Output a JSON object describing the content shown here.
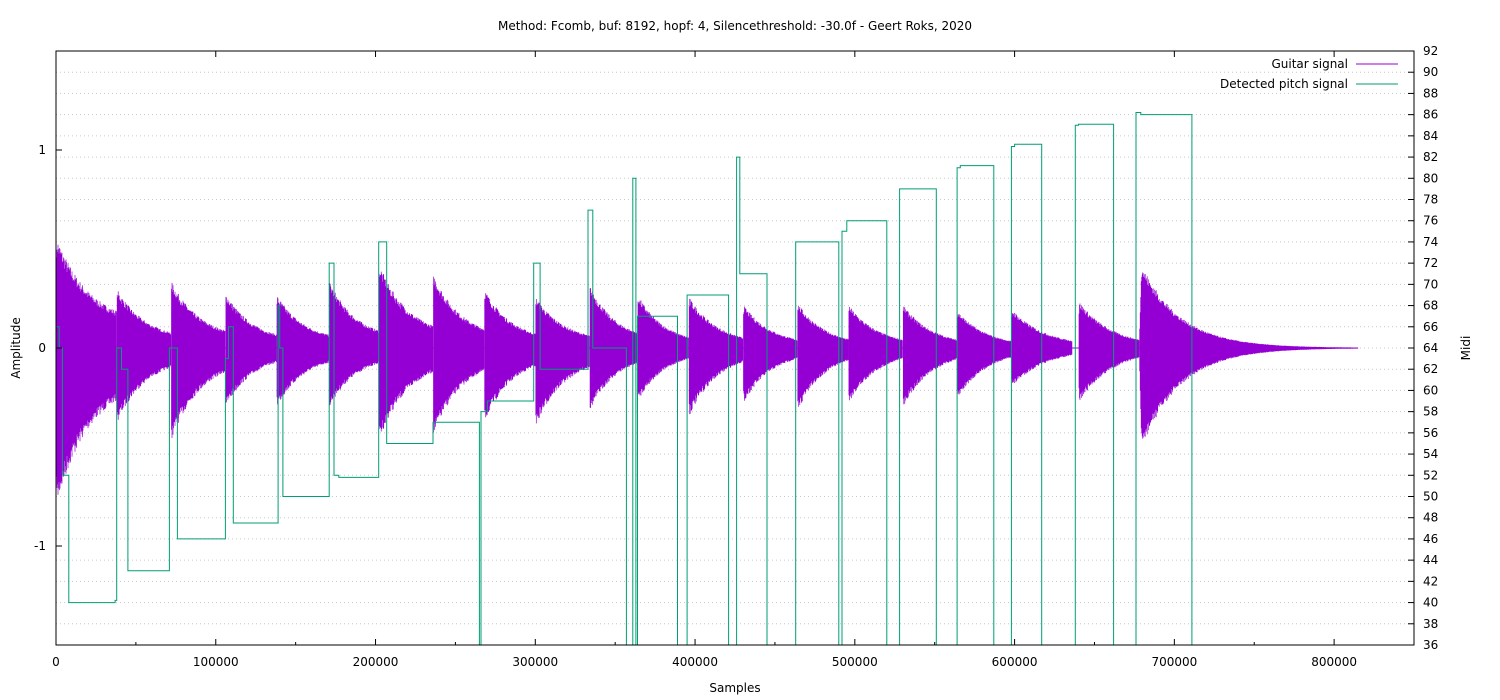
{
  "chart_data": {
    "type": "line",
    "title": "Method: Fcomb, buf: 8192, hopf: 4, Silencethreshold: -30.0f - Geert Roks, 2020",
    "xlabel": "Samples",
    "ylabel": "Amplitude",
    "y2label": "Midi",
    "xlim": [
      0,
      850000
    ],
    "ylim": [
      -1.5,
      1.5
    ],
    "y2lim": [
      36,
      92
    ],
    "x_ticks": [
      0,
      100000,
      200000,
      300000,
      400000,
      500000,
      600000,
      700000,
      800000
    ],
    "x_tick_labels": [
      "0",
      "100000",
      "200000",
      "300000",
      "400000",
      "500000",
      "600000",
      "700000",
      "800000"
    ],
    "y_ticks": [
      -1,
      0,
      1
    ],
    "y_tick_labels": [
      "-1",
      "0",
      "1"
    ],
    "y2_ticks": [
      36,
      38,
      40,
      42,
      44,
      46,
      48,
      50,
      52,
      54,
      56,
      58,
      60,
      62,
      64,
      66,
      68,
      70,
      72,
      74,
      76,
      78,
      80,
      82,
      84,
      86,
      88,
      90,
      92
    ],
    "y2_tick_labels": [
      "36",
      "38",
      "40",
      "42",
      "44",
      "46",
      "48",
      "50",
      "52",
      "54",
      "56",
      "58",
      "60",
      "62",
      "64",
      "66",
      "68",
      "70",
      "72",
      "74",
      "76",
      "78",
      "80",
      "82",
      "84",
      "86",
      "88",
      "90",
      "92"
    ],
    "grid": "y2-dotted",
    "legend_position": "top-right",
    "legend": [
      "Guitar signal",
      "Detected pitch signal"
    ],
    "colors": {
      "guitar": "#9400d3",
      "pitch": "#009e73",
      "grid": "#c8c8c8",
      "axis": "#000000"
    },
    "guitar_signal": {
      "name": "Guitar signal",
      "note_envelopes": [
        {
          "start": 0,
          "end": 38000,
          "peak": 0.57,
          "trough": -0.81,
          "tail": 0.2
        },
        {
          "start": 38000,
          "end": 72000,
          "peak": 0.3,
          "trough": -0.38,
          "tail": 0.12
        },
        {
          "start": 72000,
          "end": 106000,
          "peak": 0.34,
          "trough": -0.47,
          "tail": 0.12
        },
        {
          "start": 106000,
          "end": 138000,
          "peak": 0.28,
          "trough": -0.3,
          "tail": 0.1
        },
        {
          "start": 138000,
          "end": 171000,
          "peak": 0.27,
          "trough": -0.3,
          "tail": 0.1
        },
        {
          "start": 171000,
          "end": 202000,
          "peak": 0.34,
          "trough": -0.3,
          "tail": 0.12
        },
        {
          "start": 202000,
          "end": 236000,
          "peak": 0.43,
          "trough": -0.47,
          "tail": 0.12
        },
        {
          "start": 236000,
          "end": 268000,
          "peak": 0.38,
          "trough": -0.45,
          "tail": 0.12
        },
        {
          "start": 268000,
          "end": 300000,
          "peak": 0.3,
          "trough": -0.38,
          "tail": 0.1
        },
        {
          "start": 300000,
          "end": 334000,
          "peak": 0.26,
          "trough": -0.4,
          "tail": 0.1
        },
        {
          "start": 334000,
          "end": 364000,
          "peak": 0.32,
          "trough": -0.32,
          "tail": 0.1
        },
        {
          "start": 364000,
          "end": 396000,
          "peak": 0.27,
          "trough": -0.27,
          "tail": 0.05
        },
        {
          "start": 396000,
          "end": 430000,
          "peak": 0.26,
          "trough": -0.35,
          "tail": 0.05
        },
        {
          "start": 430000,
          "end": 464000,
          "peak": 0.22,
          "trough": -0.28,
          "tail": 0.04
        },
        {
          "start": 464000,
          "end": 496000,
          "peak": 0.23,
          "trough": -0.32,
          "tail": 0.04
        },
        {
          "start": 496000,
          "end": 530000,
          "peak": 0.22,
          "trough": -0.28,
          "tail": 0.04
        },
        {
          "start": 530000,
          "end": 564000,
          "peak": 0.22,
          "trough": -0.3,
          "tail": 0.04
        },
        {
          "start": 564000,
          "end": 598000,
          "peak": 0.19,
          "trough": -0.26,
          "tail": 0.03
        },
        {
          "start": 598000,
          "end": 636000,
          "peak": 0.2,
          "trough": -0.2,
          "tail": 0.03
        },
        {
          "start": 640000,
          "end": 678000,
          "peak": 0.24,
          "trough": -0.28,
          "tail": 0.02
        },
        {
          "start": 678000,
          "end": 815000,
          "peak": 0.45,
          "trough": -0.54,
          "tail": 0.002
        }
      ]
    },
    "pitch_signal": {
      "name": "Detected pitch signal",
      "points": [
        [
          0,
          64
        ],
        [
          0,
          66
        ],
        [
          2000,
          66
        ],
        [
          2000,
          64
        ],
        [
          4000,
          64
        ],
        [
          4000,
          52
        ],
        [
          8000,
          52
        ],
        [
          8000,
          40
        ],
        [
          37000,
          40
        ],
        [
          37000,
          40.2
        ],
        [
          38000,
          40.2
        ],
        [
          38000,
          64
        ],
        [
          41000,
          64
        ],
        [
          41000,
          62
        ],
        [
          45000,
          62
        ],
        [
          45000,
          43
        ],
        [
          71000,
          43
        ],
        [
          71000,
          64
        ],
        [
          72000,
          64
        ],
        [
          72000,
          64
        ],
        [
          76000,
          64
        ],
        [
          76000,
          46
        ],
        [
          106000,
          46
        ],
        [
          106000,
          63
        ],
        [
          108000,
          63
        ],
        [
          108000,
          66
        ],
        [
          111000,
          66
        ],
        [
          111000,
          47.5
        ],
        [
          139000,
          47.5
        ],
        [
          139000,
          68
        ],
        [
          140000,
          68
        ],
        [
          140000,
          64
        ],
        [
          142000,
          64
        ],
        [
          142000,
          50
        ],
        [
          171000,
          50
        ],
        [
          171000,
          72
        ],
        [
          174000,
          72
        ],
        [
          174000,
          52
        ],
        [
          177000,
          52
        ],
        [
          177000,
          51.8
        ],
        [
          202000,
          51.8
        ],
        [
          202000,
          74
        ],
        [
          207000,
          74
        ],
        [
          207000,
          55
        ],
        [
          236000,
          55
        ],
        [
          236000,
          57
        ],
        [
          240000,
          57
        ],
        [
          240000,
          57
        ],
        [
          265000,
          57
        ],
        [
          265000,
          36
        ],
        [
          266000,
          36
        ],
        [
          266000,
          58
        ],
        [
          270000,
          58
        ],
        [
          270000,
          59
        ],
        [
          299000,
          59
        ],
        [
          299000,
          72
        ],
        [
          303000,
          72
        ],
        [
          303000,
          62
        ],
        [
          333000,
          62
        ],
        [
          333000,
          77
        ],
        [
          336000,
          77
        ],
        [
          336000,
          64
        ],
        [
          357000,
          64
        ],
        [
          357000,
          36
        ],
        [
          361000,
          36
        ],
        [
          361000,
          80
        ],
        [
          363000,
          80
        ],
        [
          363000,
          36
        ],
        [
          364000,
          36
        ],
        [
          364000,
          67
        ],
        [
          389000,
          67
        ],
        [
          389000,
          36
        ],
        [
          395000,
          36
        ],
        [
          395000,
          69
        ],
        [
          421000,
          69
        ],
        [
          421000,
          36
        ],
        [
          426000,
          36
        ],
        [
          426000,
          82
        ],
        [
          428000,
          82
        ],
        [
          428000,
          71
        ],
        [
          445000,
          71
        ],
        [
          445000,
          36
        ],
        [
          463000,
          36
        ],
        [
          463000,
          74
        ],
        [
          490000,
          74
        ],
        [
          490000,
          36
        ],
        [
          492000,
          36
        ],
        [
          492000,
          75
        ],
        [
          495000,
          75
        ],
        [
          495000,
          76
        ],
        [
          520000,
          76
        ],
        [
          520000,
          36
        ],
        [
          528000,
          36
        ],
        [
          528000,
          79
        ],
        [
          551000,
          79
        ],
        [
          551000,
          36
        ],
        [
          564000,
          36
        ],
        [
          564000,
          81
        ],
        [
          566000,
          81
        ],
        [
          566000,
          81.2
        ],
        [
          587000,
          81.2
        ],
        [
          587000,
          36
        ],
        [
          598000,
          36
        ],
        [
          598000,
          83
        ],
        [
          600000,
          83
        ],
        [
          600000,
          83.2
        ],
        [
          617000,
          83.2
        ],
        [
          617000,
          36
        ],
        [
          638000,
          36
        ],
        [
          638000,
          85
        ],
        [
          640000,
          85
        ],
        [
          640000,
          85.1
        ],
        [
          662000,
          85.1
        ],
        [
          662000,
          36
        ],
        [
          676000,
          36
        ],
        [
          676000,
          86.2
        ],
        [
          679000,
          86.2
        ],
        [
          679000,
          86
        ],
        [
          711000,
          86
        ],
        [
          711000,
          36
        ]
      ]
    }
  }
}
